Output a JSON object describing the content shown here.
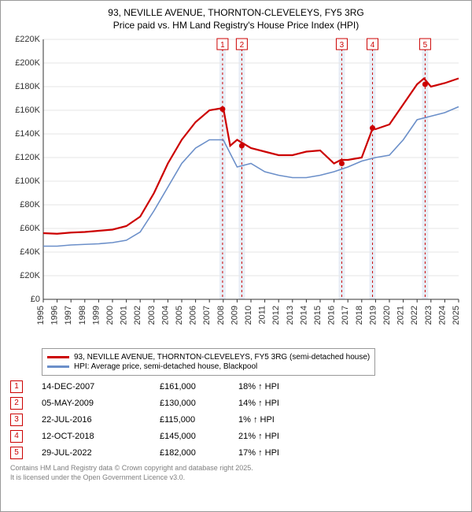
{
  "title_line1": "93, NEVILLE AVENUE, THORNTON-CLEVELEYS, FY5 3RG",
  "title_line2": "Price paid vs. HM Land Registry's House Price Index (HPI)",
  "chart": {
    "type": "line",
    "background_color": "#ffffff",
    "grid_color": "#e6e6e6",
    "axis_color": "#333333",
    "label_fontsize": 11,
    "ylim": [
      0,
      220000
    ],
    "ytick_step": 20000,
    "yticks": [
      "£0",
      "£20K",
      "£40K",
      "£60K",
      "£80K",
      "£100K",
      "£120K",
      "£140K",
      "£160K",
      "£180K",
      "£200K",
      "£220K"
    ],
    "xlim": [
      1995,
      2025
    ],
    "xticks": [
      "1995",
      "1996",
      "1997",
      "1998",
      "1999",
      "2000",
      "2001",
      "2002",
      "2003",
      "2004",
      "2005",
      "2006",
      "2007",
      "2008",
      "2009",
      "2010",
      "2011",
      "2012",
      "2013",
      "2014",
      "2015",
      "2016",
      "2017",
      "2018",
      "2019",
      "2020",
      "2021",
      "2022",
      "2023",
      "2024",
      "2025"
    ],
    "marker_band_color": "#e8eef7",
    "marker_line_color": "#cc0000",
    "marker_dash": "3,3",
    "series": [
      {
        "name": "price_paid",
        "color": "#cc0000",
        "line_width": 2.2,
        "points": [
          [
            1995,
            56000
          ],
          [
            1996,
            55500
          ],
          [
            1997,
            56500
          ],
          [
            1998,
            57000
          ],
          [
            1999,
            58000
          ],
          [
            2000,
            59000
          ],
          [
            2001,
            62000
          ],
          [
            2002,
            70000
          ],
          [
            2003,
            90000
          ],
          [
            2004,
            115000
          ],
          [
            2005,
            135000
          ],
          [
            2006,
            150000
          ],
          [
            2007,
            160000
          ],
          [
            2008,
            162000
          ],
          [
            2008.5,
            130000
          ],
          [
            2009,
            135000
          ],
          [
            2010,
            128000
          ],
          [
            2011,
            125000
          ],
          [
            2012,
            122000
          ],
          [
            2013,
            122000
          ],
          [
            2014,
            125000
          ],
          [
            2015,
            126000
          ],
          [
            2016,
            115000
          ],
          [
            2016.5,
            118000
          ],
          [
            2017,
            118000
          ],
          [
            2018,
            120000
          ],
          [
            2018.8,
            145000
          ],
          [
            2019,
            144000
          ],
          [
            2020,
            148000
          ],
          [
            2021,
            165000
          ],
          [
            2022,
            182000
          ],
          [
            2022.5,
            187000
          ],
          [
            2023,
            180000
          ],
          [
            2024,
            183000
          ],
          [
            2025,
            187000
          ]
        ]
      },
      {
        "name": "hpi",
        "color": "#6b8fc9",
        "line_width": 1.6,
        "points": [
          [
            1995,
            45000
          ],
          [
            1996,
            45000
          ],
          [
            1997,
            46000
          ],
          [
            1998,
            46500
          ],
          [
            1999,
            47000
          ],
          [
            2000,
            48000
          ],
          [
            2001,
            50000
          ],
          [
            2002,
            57000
          ],
          [
            2003,
            75000
          ],
          [
            2004,
            95000
          ],
          [
            2005,
            115000
          ],
          [
            2006,
            128000
          ],
          [
            2007,
            135000
          ],
          [
            2008,
            135000
          ],
          [
            2009,
            112000
          ],
          [
            2010,
            115000
          ],
          [
            2011,
            108000
          ],
          [
            2012,
            105000
          ],
          [
            2013,
            103000
          ],
          [
            2014,
            103000
          ],
          [
            2015,
            105000
          ],
          [
            2016,
            108000
          ],
          [
            2017,
            112000
          ],
          [
            2018,
            117000
          ],
          [
            2019,
            120000
          ],
          [
            2020,
            122000
          ],
          [
            2021,
            135000
          ],
          [
            2022,
            152000
          ],
          [
            2023,
            155000
          ],
          [
            2024,
            158000
          ],
          [
            2025,
            163000
          ]
        ]
      }
    ],
    "markers": [
      {
        "n": "1",
        "x": 2007.95,
        "y": 161000
      },
      {
        "n": "2",
        "x": 2009.34,
        "y": 130000
      },
      {
        "n": "3",
        "x": 2016.56,
        "y": 115000
      },
      {
        "n": "4",
        "x": 2018.78,
        "y": 145000
      },
      {
        "n": "5",
        "x": 2022.58,
        "y": 182000
      }
    ]
  },
  "legend": {
    "series1": {
      "label": "93, NEVILLE AVENUE, THORNTON-CLEVELEYS, FY5 3RG (semi-detached house)",
      "color": "#cc0000"
    },
    "series2": {
      "label": "HPI: Average price, semi-detached house, Blackpool",
      "color": "#6b8fc9"
    }
  },
  "table": {
    "rows": [
      {
        "n": "1",
        "date": "14-DEC-2007",
        "price": "£161,000",
        "pct": "18% ↑ HPI"
      },
      {
        "n": "2",
        "date": "05-MAY-2009",
        "price": "£130,000",
        "pct": "14% ↑ HPI"
      },
      {
        "n": "3",
        "date": "22-JUL-2016",
        "price": "£115,000",
        "pct": "1% ↑ HPI"
      },
      {
        "n": "4",
        "date": "12-OCT-2018",
        "price": "£145,000",
        "pct": "21% ↑ HPI"
      },
      {
        "n": "5",
        "date": "29-JUL-2022",
        "price": "£182,000",
        "pct": "17% ↑ HPI"
      }
    ]
  },
  "footer_line1": "Contains HM Land Registry data © Crown copyright and database right 2025.",
  "footer_line2": "It is licensed under the Open Government Licence v3.0."
}
